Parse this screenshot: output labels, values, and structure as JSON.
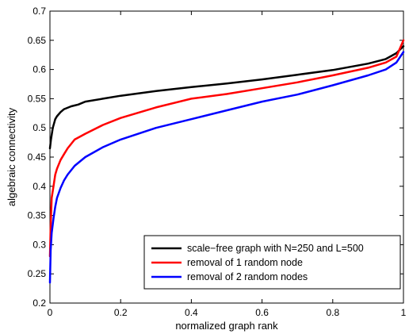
{
  "chart_data": {
    "type": "line",
    "title": "",
    "xlabel": "normalized graph rank",
    "ylabel": "algebraic connectivity",
    "xlim": [
      0,
      1
    ],
    "ylim": [
      0.2,
      0.7
    ],
    "xticks": [
      0,
      0.2,
      0.4,
      0.6,
      0.8,
      1
    ],
    "xtick_labels": [
      "0",
      "0.2",
      "0.4",
      "0.6",
      "0.8",
      "1"
    ],
    "yticks": [
      0.2,
      0.25,
      0.3,
      0.35,
      0.4,
      0.45,
      0.5,
      0.55,
      0.6,
      0.65,
      0.7
    ],
    "ytick_labels": [
      "0.2",
      "0.25",
      "0.3",
      "0.35",
      "0.4",
      "0.45",
      "0.5",
      "0.55",
      "0.6",
      "0.65",
      "0.7"
    ],
    "grid": false,
    "legend_position": "bottom-right",
    "series": [
      {
        "name": "scale−free graph with N=250 and L=500",
        "color": "#000000",
        "x": [
          0,
          0.003,
          0.008,
          0.015,
          0.02,
          0.03,
          0.04,
          0.06,
          0.08,
          0.1,
          0.15,
          0.2,
          0.3,
          0.4,
          0.5,
          0.6,
          0.7,
          0.8,
          0.9,
          0.95,
          0.98,
          1
        ],
        "y": [
          0.465,
          0.48,
          0.5,
          0.515,
          0.52,
          0.527,
          0.532,
          0.537,
          0.54,
          0.545,
          0.55,
          0.555,
          0.563,
          0.57,
          0.576,
          0.583,
          0.591,
          0.599,
          0.61,
          0.618,
          0.628,
          0.64
        ]
      },
      {
        "name": "removal of 1 random node",
        "color": "#ff0000",
        "x": [
          0,
          0.002,
          0.005,
          0.01,
          0.015,
          0.02,
          0.03,
          0.04,
          0.05,
          0.07,
          0.1,
          0.15,
          0.2,
          0.3,
          0.4,
          0.5,
          0.6,
          0.7,
          0.8,
          0.9,
          0.95,
          0.98,
          1
        ],
        "y": [
          0.28,
          0.33,
          0.38,
          0.4,
          0.42,
          0.43,
          0.445,
          0.455,
          0.465,
          0.48,
          0.49,
          0.505,
          0.517,
          0.535,
          0.55,
          0.558,
          0.568,
          0.578,
          0.59,
          0.603,
          0.612,
          0.622,
          0.65
        ]
      },
      {
        "name": "removal of 2 random nodes",
        "color": "#0000ff",
        "x": [
          0,
          0.002,
          0.005,
          0.01,
          0.015,
          0.02,
          0.03,
          0.04,
          0.05,
          0.07,
          0.1,
          0.15,
          0.2,
          0.3,
          0.4,
          0.5,
          0.6,
          0.7,
          0.8,
          0.9,
          0.95,
          0.98,
          1
        ],
        "y": [
          0.235,
          0.29,
          0.32,
          0.345,
          0.365,
          0.38,
          0.397,
          0.41,
          0.42,
          0.435,
          0.45,
          0.467,
          0.48,
          0.5,
          0.515,
          0.53,
          0.545,
          0.557,
          0.573,
          0.59,
          0.6,
          0.612,
          0.63
        ]
      }
    ]
  }
}
